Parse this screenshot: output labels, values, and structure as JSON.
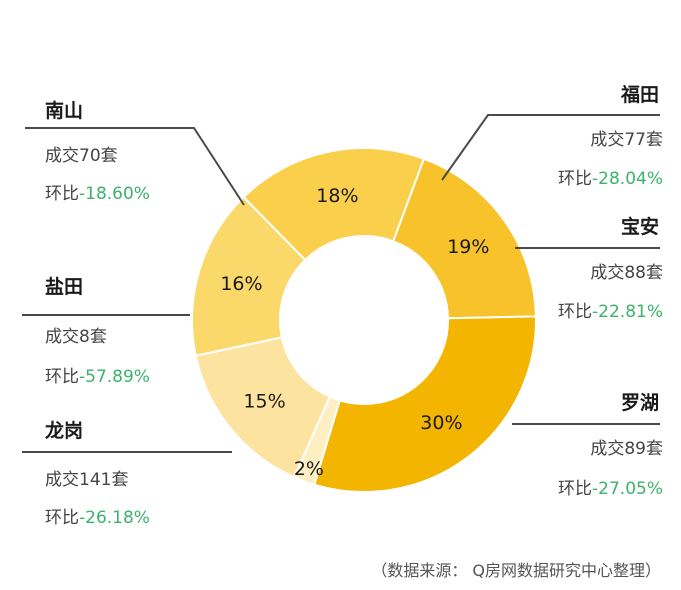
{
  "chart_data": {
    "type": "pie",
    "style": "donut",
    "segments": [
      {
        "district": "福田",
        "label": "16%",
        "value": 16,
        "deals": "成交77套",
        "mom_prefix": "环比",
        "mom": "-28.04%",
        "color": "#fbd86a"
      },
      {
        "district": "宝安",
        "label": "18%",
        "value": 18,
        "deals": "成交88套",
        "mom_prefix": "环比",
        "mom": "-22.81%",
        "color": "#f9cf4c"
      },
      {
        "district": "罗湖",
        "label": "19%",
        "value": 19,
        "deals": "成交89套",
        "mom_prefix": "环比",
        "mom": "-27.05%",
        "color": "#f7c22a"
      },
      {
        "district": "龙岗",
        "label": "30%",
        "value": 30,
        "deals": "成交141套",
        "mom_prefix": "环比",
        "mom": "-26.18%",
        "color": "#f3b500"
      },
      {
        "district": "盐田",
        "label": "2%",
        "value": 2,
        "deals": "成交8套",
        "mom_prefix": "环比",
        "mom": "-57.89%",
        "color": "#fdefc2"
      },
      {
        "district": "南山",
        "label": "15%",
        "value": 15,
        "deals": "成交70套",
        "mom_prefix": "环比",
        "mom": "-18.60%",
        "color": "#fde3a0"
      }
    ],
    "positive_color": "#3bb36b"
  },
  "footer": {
    "source": "（数据来源： Q房网数据研究中心整理）"
  }
}
